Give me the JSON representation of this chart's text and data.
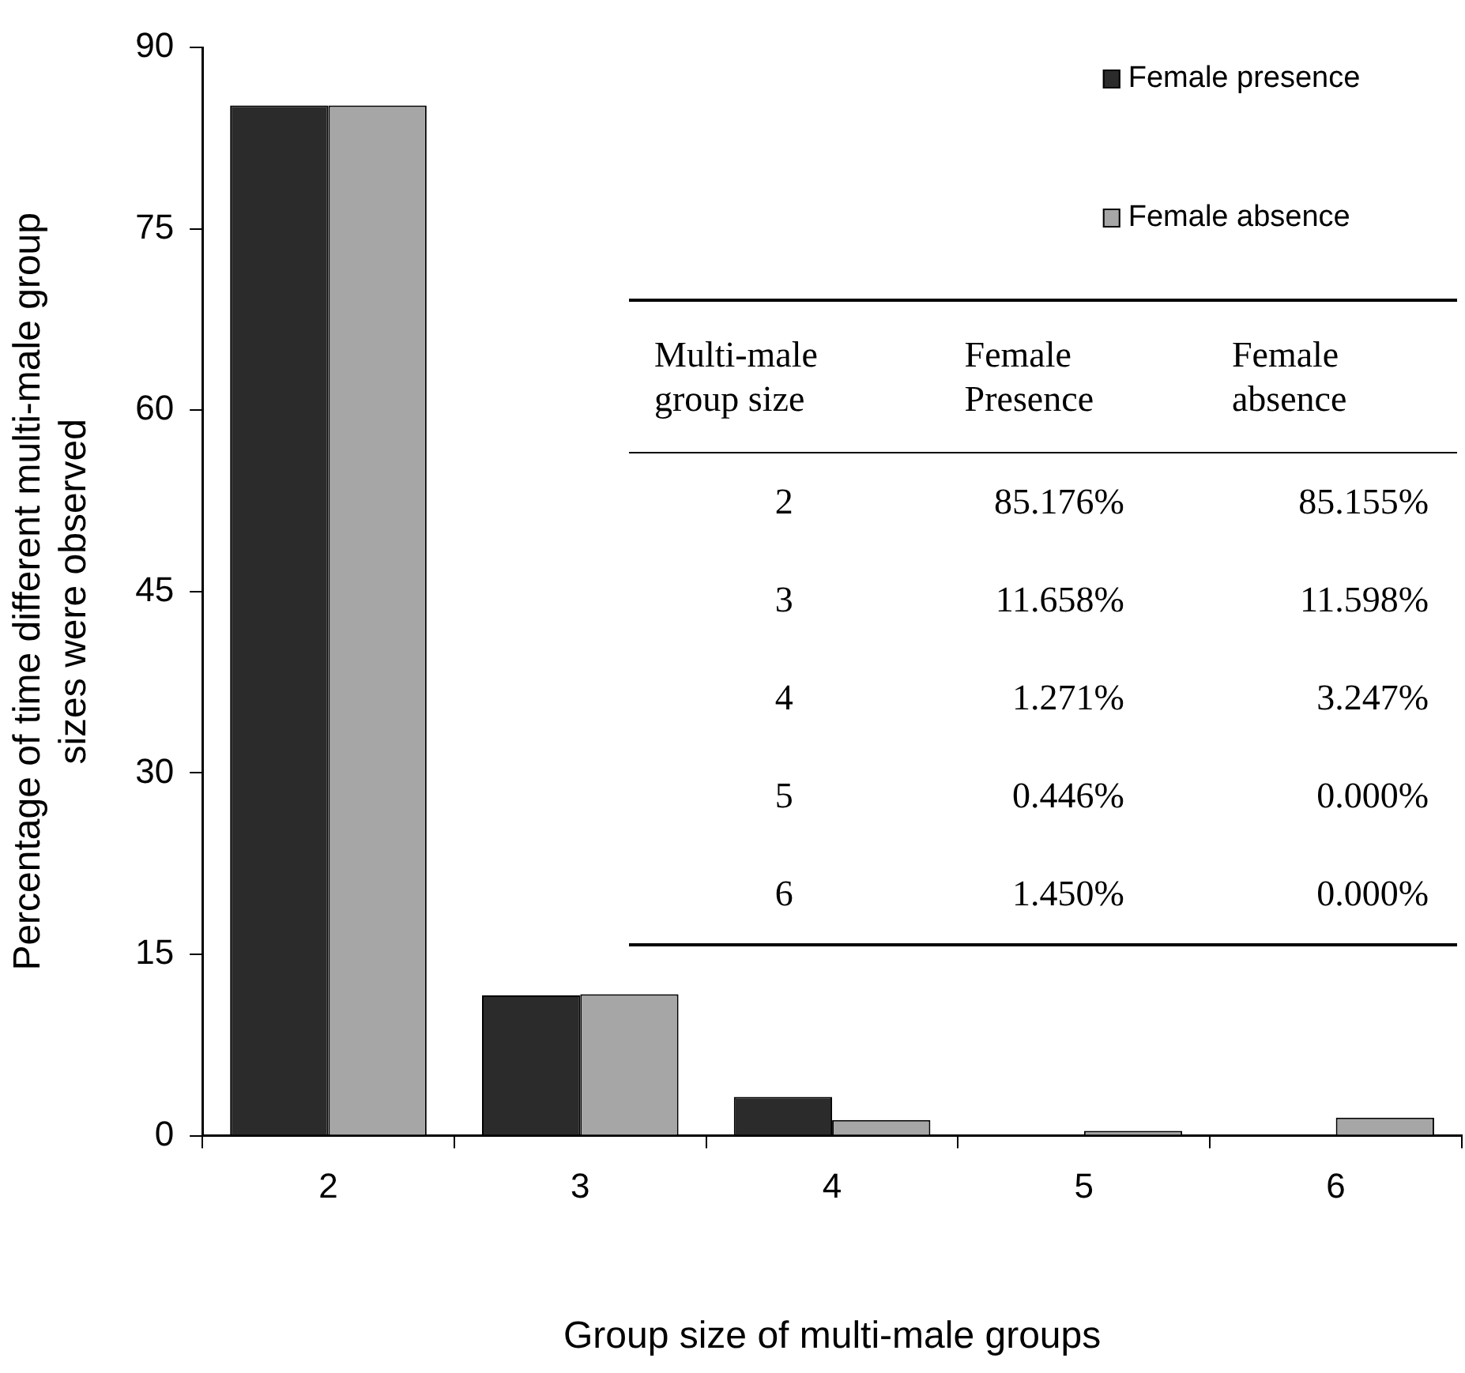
{
  "chart_data": {
    "type": "bar",
    "xlabel": "Group size of multi-male groups",
    "ylabel": "Percentage of time different multi-male group sizes were observed",
    "categories": [
      "2",
      "3",
      "4",
      "5",
      "6"
    ],
    "series": [
      {
        "name": "Female presence",
        "color": "#2b2b2b",
        "values": [
          85.2,
          11.6,
          3.2,
          0,
          0
        ]
      },
      {
        "name": "Female absence",
        "color": "#a6a6a6",
        "values": [
          85.2,
          11.7,
          1.3,
          0.4,
          1.5
        ]
      }
    ],
    "ylim": [
      0,
      90
    ],
    "yticks": [
      0,
      15,
      30,
      45,
      60,
      75,
      90
    ],
    "grid": false,
    "legend": "top right",
    "annotations": [
      "Multi-male group size",
      "Female Presence",
      "Female absence",
      "2",
      "85.176%",
      "85.155%",
      "3",
      "11.658%",
      "11.598%",
      "4",
      "1.271%",
      "3.247%",
      "5",
      "0.446%",
      "0.000%",
      "6",
      "1.450%",
      "0.000%"
    ]
  }
}
